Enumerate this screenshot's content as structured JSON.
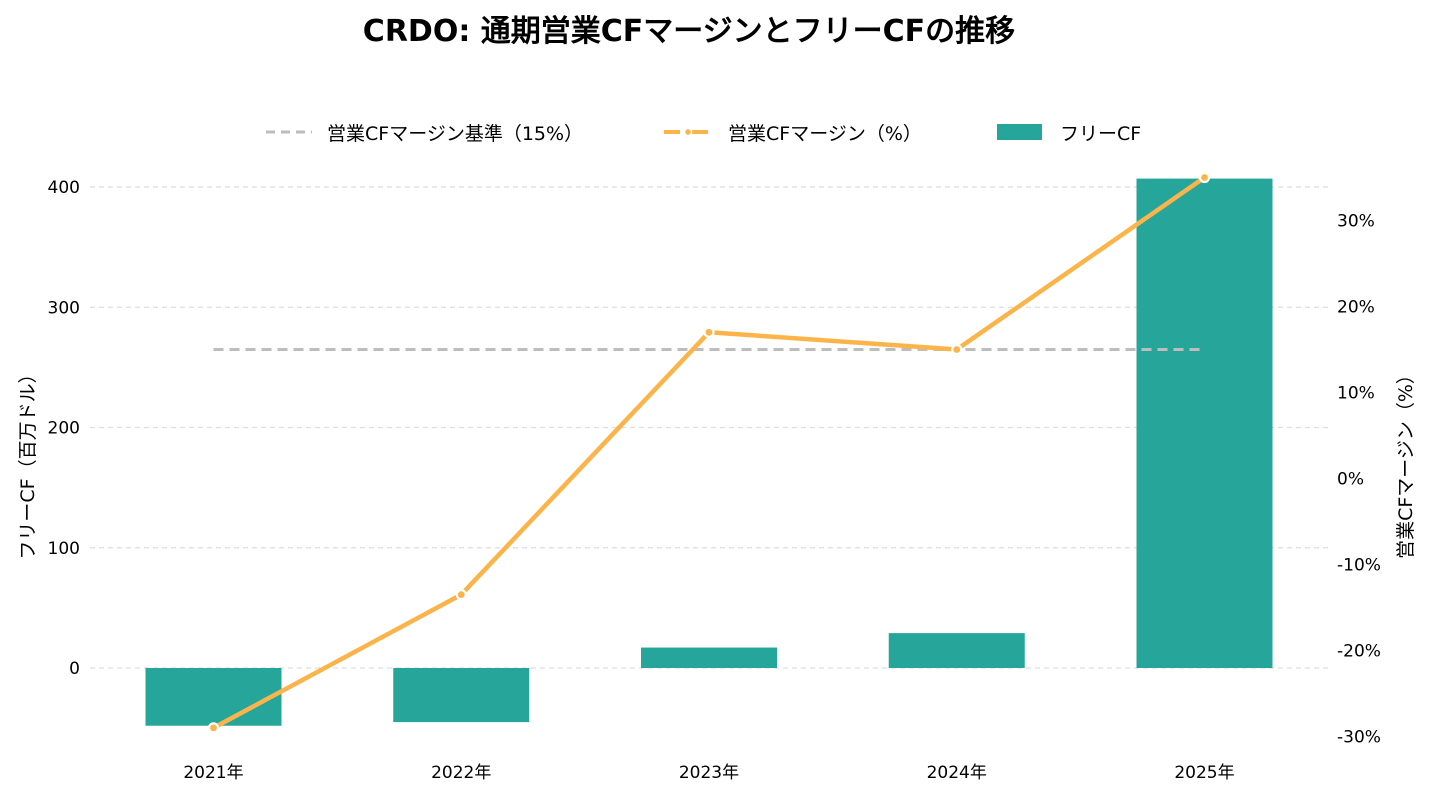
{
  "chart_data": {
    "type": "bar",
    "title": "CRDO: 通期営業CFマージンとフリーCFの推移",
    "categories": [
      "2021年",
      "2022年",
      "2023年",
      "2024年",
      "2025年"
    ],
    "ylabel_left": "フリーCF（百万ドル）",
    "ylabel_right": "営業CFマージン（%）",
    "ylim_left": [
      -50,
      410
    ],
    "ylim_right": [
      -30,
      35
    ],
    "yticks_left": [
      0,
      100,
      200,
      300,
      400
    ],
    "yticks_right": [
      -30,
      -20,
      -10,
      0,
      10,
      20,
      30
    ],
    "yticks_right_labels": [
      "-30%",
      "-20%",
      "-10%",
      "0%",
      "10%",
      "20%",
      "30%"
    ],
    "grid": true,
    "legend_position": "top-center",
    "series": [
      {
        "name": "フリーCF",
        "type": "bar",
        "axis": "left",
        "color": "#26a69a",
        "values": [
          -48,
          -45,
          17,
          29,
          407
        ]
      },
      {
        "name": "営業CFマージン（%）",
        "type": "line",
        "axis": "right",
        "color": "#fbb44a",
        "values": [
          -29,
          -13.5,
          17,
          15,
          35
        ]
      },
      {
        "name": "営業CFマージン基準（15%）",
        "type": "reference-line",
        "axis": "right",
        "color": "#bdbdbd",
        "value": 15
      }
    ]
  }
}
